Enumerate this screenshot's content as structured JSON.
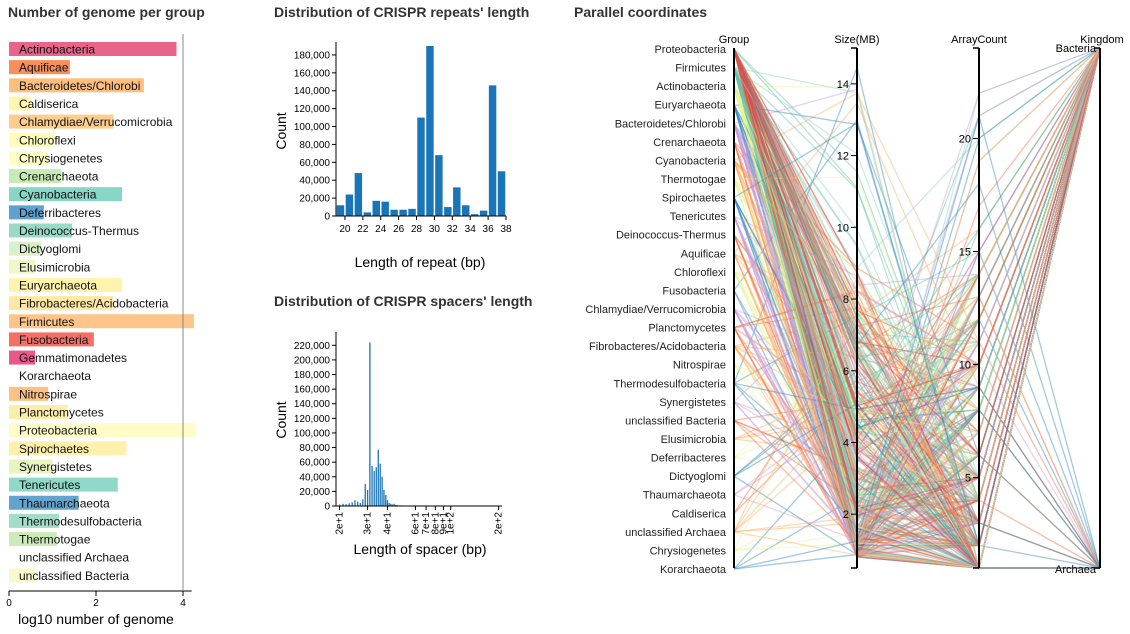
{
  "panels": {
    "groups_title": "Number of genome per group",
    "repeat_title": "Distribution of CRISPR repeats' length",
    "spacer_title": "Distribution of CRISPR spacers' length",
    "parallel_title": "Parallel coordinates"
  },
  "chart_data": [
    {
      "type": "bar",
      "orientation": "horizontal",
      "title": "Number of genome per group",
      "xlabel": "log10 number of genome",
      "ylabel": "",
      "xlim": [
        0,
        4.2
      ],
      "xticks": [
        0,
        2,
        4
      ],
      "reference_line": 4,
      "categories": [
        "Actinobacteria",
        "Aquificae",
        "Bacteroidetes/Chlorobi",
        "Caldiserica",
        "Chlamydiae/Verrucomicrobia",
        "Chloroflexi",
        "Chrysiogenetes",
        "Crenarchaeota",
        "Cyanobacteria",
        "Deferribacteres",
        "Deinococcus-Thermus",
        "Dictyoglomi",
        "Elusimicrobia",
        "Euryarchaeota",
        "Fibrobacteres/Acidobacteria",
        "Firmicutes",
        "Fusobacteria",
        "Gemmatimonadetes",
        "Korarchaeota",
        "Nitrospirae",
        "Planctomycetes",
        "Proteobacteria",
        "Spirochaetes",
        "Synergistetes",
        "Tenericutes",
        "Thaumarchaeota",
        "Thermodesulfobacteria",
        "Thermotogae",
        "unclassified Archaea",
        "unclassified Bacteria"
      ],
      "values": [
        3.85,
        1.4,
        3.1,
        0.5,
        2.4,
        1.05,
        0.9,
        1.2,
        2.6,
        0.8,
        1.45,
        0.75,
        0.6,
        2.6,
        2.4,
        4.25,
        1.95,
        0.6,
        0.0,
        0.9,
        1.35,
        4.3,
        2.7,
        1.0,
        2.5,
        1.6,
        1.15,
        1.1,
        0.0,
        0.6
      ],
      "colors": [
        "#e8648a",
        "#f98e5a",
        "#fdbe7e",
        "#fff7b0",
        "#fdcd8c",
        "#fffbb8",
        "#ffffc4",
        "#c7ebb4",
        "#87d6c6",
        "#5da2d0",
        "#99d9c8",
        "#daf0c8",
        "#f1f8c8",
        "#fff3ae",
        "#ffe7a4",
        "#fdc58a",
        "#f47066",
        "#e8588a",
        "#ffffff",
        "#fdc085",
        "#ffedaa",
        "#fffcc8",
        "#fff0ac",
        "#e9f5c0",
        "#90d8c8",
        "#63a4cf",
        "#a3dcc8",
        "#cdebb9",
        "#ffffff",
        "#fbf8cc"
      ]
    },
    {
      "type": "bar",
      "title": "Distribution of CRISPR repeats' length",
      "xlabel": "Length of repeat (bp)",
      "ylabel": "Count",
      "ylim": [
        0,
        190000
      ],
      "xticks": [
        20,
        22,
        24,
        26,
        28,
        30,
        32,
        34,
        36,
        38
      ],
      "yticks": [
        0,
        20000,
        40000,
        60000,
        80000,
        100000,
        120000,
        140000,
        160000,
        180000
      ],
      "x": [
        19,
        20,
        21,
        22,
        23,
        24,
        25,
        26,
        27,
        28,
        29,
        30,
        31,
        32,
        33,
        34,
        35,
        36,
        37
      ],
      "values": [
        12000,
        24000,
        48000,
        4000,
        17000,
        16000,
        7000,
        7000,
        8000,
        110000,
        190000,
        68000,
        10000,
        32000,
        12000,
        2000,
        6000,
        146000,
        50000
      ],
      "color": "#1a75b8"
    },
    {
      "type": "bar",
      "title": "Distribution of CRISPR spacers' length",
      "xlabel": "Length of spacer (bp)",
      "ylabel": "Count",
      "ylim": [
        0,
        230000
      ],
      "xscale": "log",
      "xticks": [
        "2e+1",
        "3e+1",
        "4e+1",
        "6e+1",
        "7e+1",
        "8e+1",
        "9e+1",
        "1e+2",
        "2e+2"
      ],
      "yticks": [
        0,
        20000,
        40000,
        60000,
        80000,
        100000,
        120000,
        140000,
        160000,
        180000,
        200000,
        220000
      ],
      "x": [
        20,
        21,
        22,
        23,
        24,
        25,
        26,
        27,
        28,
        29,
        30,
        31,
        32,
        33,
        34,
        35,
        36,
        37,
        38,
        39,
        40,
        41,
        42,
        43,
        44,
        45,
        46,
        48,
        50
      ],
      "values": [
        2000,
        3000,
        2500,
        3500,
        5000,
        8000,
        6000,
        4000,
        9000,
        30000,
        22000,
        224000,
        55000,
        48000,
        53000,
        77000,
        58000,
        40000,
        22000,
        15000,
        8000,
        4000,
        3000,
        2000,
        3000,
        1500,
        1000,
        1000,
        500
      ],
      "color": "#1a75b8"
    },
    {
      "type": "parallel_coordinates",
      "title": "Parallel coordinates",
      "axes": [
        "Group",
        "Size(MB)",
        "ArrayCount",
        "Kingdom"
      ],
      "group_axis_categories": [
        "Proteobacteria",
        "Firmicutes",
        "Actinobacteria",
        "Euryarchaeota",
        "Bacteroidetes/Chlorobi",
        "Crenarchaeota",
        "Cyanobacteria",
        "Thermotogae",
        "Spirochaetes",
        "Tenericutes",
        "Deinococcus-Thermus",
        "Aquificae",
        "Chloroflexi",
        "Fusobacteria",
        "Chlamydiae/Verrucomicrobia",
        "Planctomycetes",
        "Fibrobacteres/Acidobacteria",
        "Nitrospirae",
        "Thermodesulfobacteria",
        "Synergistetes",
        "unclassified Bacteria",
        "Elusimicrobia",
        "Deferribacteres",
        "Dictyoglomi",
        "Thaumarchaeota",
        "Caldiserica",
        "unclassified Archaea",
        "Chrysiogenetes",
        "Korarchaeota"
      ],
      "size_range": [
        0.5,
        15
      ],
      "size_ticks": [
        2,
        4,
        6,
        8,
        10,
        12,
        14
      ],
      "arraycount_range": [
        1,
        24
      ],
      "arraycount_ticks": [
        5,
        10,
        15,
        20
      ],
      "kingdoms": [
        "Bacteria",
        "Archaea"
      ]
    }
  ]
}
